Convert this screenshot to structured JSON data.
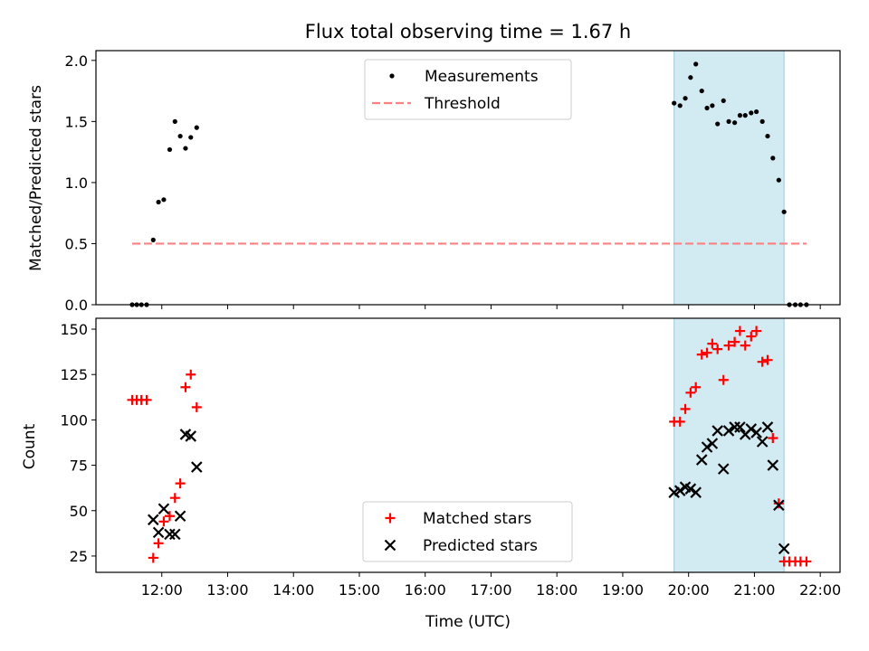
{
  "figure": {
    "title": "Flux total observing time = 1.67 h",
    "xlabel": "Time (UTC)",
    "x_ticks": [
      "12:00",
      "13:00",
      "14:00",
      "15:00",
      "16:00",
      "17:00",
      "18:00",
      "19:00",
      "20:00",
      "21:00",
      "22:00"
    ],
    "highlight_color": "#add8e6"
  },
  "chart_data": [
    {
      "type": "scatter",
      "ylabel": "Matched/Predicted stars",
      "x_unit": "hours UTC",
      "xlim": [
        11.0,
        22.3
      ],
      "ylim": [
        0,
        2.08
      ],
      "y_ticks": [
        "0.0",
        "0.5",
        "1.0",
        "1.5",
        "2.0"
      ],
      "y_tick_values": [
        0,
        0.5,
        1.0,
        1.5,
        2.0
      ],
      "grid": false,
      "legend_position": "upper center",
      "highlight_span": [
        19.78,
        21.45
      ],
      "series": [
        {
          "name": "Measurements",
          "marker": "dot",
          "color": "#000000",
          "x": [
            11.55,
            11.62,
            11.69,
            11.77,
            11.87,
            11.95,
            12.03,
            12.12,
            12.2,
            12.28,
            12.36,
            12.44,
            12.53,
            19.78,
            19.87,
            19.95,
            20.03,
            20.11,
            20.2,
            20.28,
            20.36,
            20.44,
            20.53,
            20.61,
            20.7,
            20.78,
            20.86,
            20.95,
            21.03,
            21.12,
            21.2,
            21.28,
            21.37,
            21.45,
            21.53,
            21.62,
            21.7,
            21.79
          ],
          "y": [
            0,
            0,
            0,
            0,
            0.53,
            0.84,
            0.86,
            1.27,
            1.5,
            1.38,
            1.28,
            1.37,
            1.45,
            1.65,
            1.63,
            1.69,
            1.86,
            1.97,
            1.75,
            1.61,
            1.63,
            1.48,
            1.67,
            1.5,
            1.49,
            1.55,
            1.55,
            1.57,
            1.58,
            1.5,
            1.38,
            1.2,
            1.02,
            0.76,
            0,
            0,
            0,
            0
          ]
        },
        {
          "name": "Threshold",
          "marker": "dashed-line",
          "color": "#ff8080",
          "x": [
            11.55,
            21.79
          ],
          "y": [
            0.5,
            0.5
          ]
        }
      ]
    },
    {
      "type": "scatter",
      "ylabel": "Count",
      "x_unit": "hours UTC",
      "xlim": [
        11.0,
        22.3
      ],
      "ylim": [
        16,
        156
      ],
      "y_ticks": [
        "25",
        "50",
        "75",
        "100",
        "125",
        "150"
      ],
      "y_tick_values": [
        25,
        50,
        75,
        100,
        125,
        150
      ],
      "grid": false,
      "legend_position": "lower center",
      "highlight_span": [
        19.78,
        21.45
      ],
      "series": [
        {
          "name": "Matched stars",
          "marker": "plus",
          "color": "#ff0000",
          "x": [
            11.55,
            11.62,
            11.69,
            11.77,
            11.87,
            11.95,
            12.03,
            12.12,
            12.2,
            12.28,
            12.36,
            12.44,
            12.53,
            19.78,
            19.87,
            19.95,
            20.03,
            20.11,
            20.2,
            20.28,
            20.36,
            20.44,
            20.53,
            20.61,
            20.7,
            20.78,
            20.86,
            20.95,
            21.03,
            21.12,
            21.2,
            21.28,
            21.37,
            21.45,
            21.53,
            21.62,
            21.7,
            21.79
          ],
          "y": [
            111,
            111,
            111,
            111,
            24,
            32,
            44,
            47,
            57,
            65,
            118,
            125,
            107,
            99,
            99,
            106,
            115,
            118,
            136,
            137,
            142,
            139,
            122,
            141,
            143,
            149,
            141,
            146,
            149,
            132,
            133,
            90,
            54,
            22,
            22,
            22,
            22,
            22
          ]
        },
        {
          "name": "Predicted stars",
          "marker": "x",
          "color": "#000000",
          "x": [
            11.87,
            11.95,
            12.03,
            12.12,
            12.2,
            12.28,
            12.36,
            12.44,
            12.53,
            19.78,
            19.87,
            19.95,
            20.03,
            20.11,
            20.2,
            20.28,
            20.36,
            20.44,
            20.53,
            20.61,
            20.7,
            20.78,
            20.86,
            20.95,
            21.03,
            21.12,
            21.2,
            21.28,
            21.37,
            21.45
          ],
          "y": [
            45,
            38,
            51,
            37,
            37,
            47,
            92,
            91,
            74,
            60,
            61,
            63,
            62,
            60,
            78,
            85,
            87,
            94,
            73,
            94,
            96,
            96,
            92,
            95,
            93,
            88,
            96,
            75,
            53,
            29
          ]
        }
      ]
    }
  ]
}
